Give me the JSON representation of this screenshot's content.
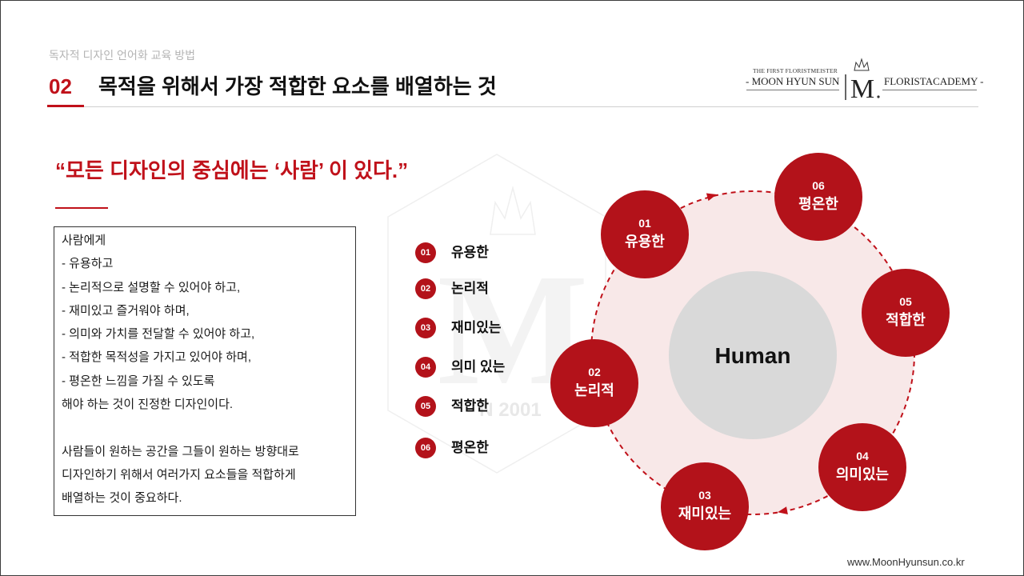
{
  "header": {
    "subtitle": "독자적 디자인 언어화 교육 방법",
    "section_number": "02",
    "title": "목적을 위해서 가장 적합한 요소를 배열하는 것"
  },
  "logo": {
    "tagline": "THE FIRST FLORISTMEISTER",
    "name": "- MOON HYUN SUN",
    "monogram": "M",
    "academy": "FLORISTACADEMY -"
  },
  "quote": "“모든 디자인의 중심에는 ‘사람’ 이 있다.”",
  "textbox": {
    "paragraph1": [
      "사람에게",
      "- 유용하고",
      "- 논리적으로 설명할 수 있어야 하고,",
      "- 재미있고 즐거워야 하며,",
      "- 의미와 가치를 전달할 수 있어야 하고,",
      "- 적합한 목적성을 가지고 있어야 하며,",
      "- 평온한 느낌을 가질 수 있도록",
      "해야 하는 것이 진정한 디자인이다."
    ],
    "paragraph2": [
      "사람들이 원하는 공간을 그들이 원하는 방향대로",
      "디자인하기 위해서 여러가지 요소들을 적합하게",
      "배열하는 것이 중요하다."
    ]
  },
  "elements_list": [
    {
      "num": "01",
      "label": "유용한"
    },
    {
      "num": "02",
      "label": "논리적"
    },
    {
      "num": "03",
      "label": "재미있는"
    },
    {
      "num": "04",
      "label": "의미 있는"
    },
    {
      "num": "05",
      "label": "적합한"
    },
    {
      "num": "06",
      "label": "평온한"
    }
  ],
  "diagram": {
    "center": "Human",
    "nodes": [
      {
        "num": "01",
        "label": "유용한"
      },
      {
        "num": "02",
        "label": "논리적"
      },
      {
        "num": "03",
        "label": "재미있는"
      },
      {
        "num": "04",
        "label": "의미있는"
      },
      {
        "num": "05",
        "label": "적합한"
      },
      {
        "num": "06",
        "label": "평온한"
      }
    ]
  },
  "watermark": {
    "monogram": "M",
    "text": "N 2001"
  },
  "footer": {
    "website": "www.MoonHyunsun.co.kr"
  },
  "colors": {
    "accent": "#c0111a",
    "node": "#b3121a",
    "ring_fill": "#f8e8e8",
    "center_fill": "#d9d9d9"
  }
}
